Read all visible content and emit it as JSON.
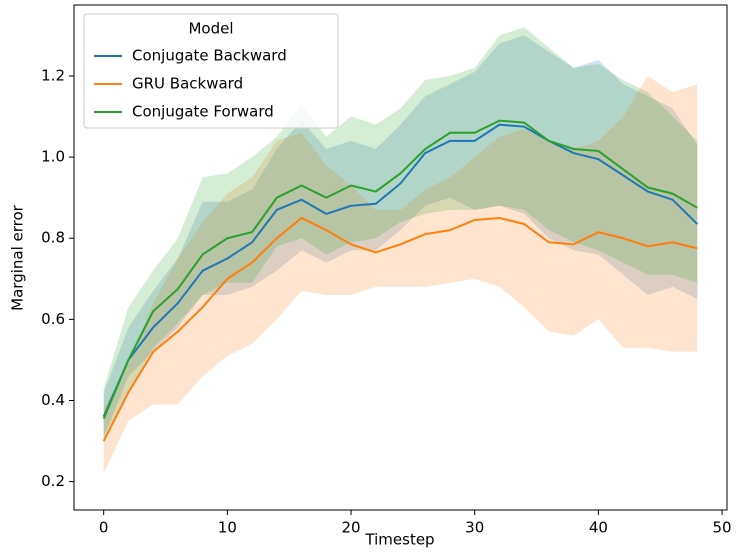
{
  "chart_data": {
    "type": "line",
    "x_label": "Timestep",
    "y_label": "Marginal error",
    "legend_title": "Model",
    "legend_position": "upper left",
    "x": [
      0,
      2,
      4,
      6,
      8,
      10,
      12,
      14,
      16,
      18,
      20,
      22,
      24,
      26,
      28,
      30,
      32,
      34,
      36,
      38,
      40,
      42,
      44,
      46,
      48
    ],
    "xlim": [
      -2.4,
      50.4
    ],
    "xticks": [
      0,
      10,
      20,
      30,
      40,
      50
    ],
    "ylim": [
      0.13,
      1.375
    ],
    "yticks": [
      0.2,
      0.4,
      0.6,
      0.8,
      {
        "value": 1,
        "label": "1.0"
      },
      1.2
    ],
    "band_opacity": 0.2,
    "series": [
      {
        "name": "Conjugate Backward",
        "color": "#1f77b4",
        "values": [
          0.36,
          0.5,
          0.58,
          0.64,
          0.72,
          0.75,
          0.79,
          0.87,
          0.895,
          0.86,
          0.88,
          0.885,
          0.935,
          1.01,
          1.04,
          1.04,
          1.08,
          1.075,
          1.04,
          1.01,
          0.995,
          0.955,
          0.915,
          0.895,
          0.835
        ],
        "lower": [
          0.31,
          0.46,
          0.52,
          0.58,
          0.66,
          0.66,
          0.68,
          0.72,
          0.77,
          0.74,
          0.77,
          0.77,
          0.82,
          0.88,
          0.9,
          0.87,
          0.88,
          0.86,
          0.8,
          0.77,
          0.76,
          0.71,
          0.66,
          0.68,
          0.65
        ],
        "upper": [
          0.42,
          0.58,
          0.67,
          0.75,
          0.89,
          0.89,
          0.92,
          1.02,
          1.09,
          1.02,
          1.04,
          1.02,
          1.08,
          1.15,
          1.18,
          1.21,
          1.28,
          1.3,
          1.26,
          1.22,
          1.24,
          1.18,
          1.15,
          1.12,
          1.03
        ]
      },
      {
        "name": "GRU Backward",
        "color": "#ff7f0e",
        "values": [
          0.3,
          0.42,
          0.52,
          0.57,
          0.63,
          0.7,
          0.74,
          0.8,
          0.85,
          0.82,
          0.785,
          0.765,
          0.785,
          0.81,
          0.82,
          0.845,
          0.85,
          0.835,
          0.79,
          0.785,
          0.815,
          0.8,
          0.78,
          0.79,
          0.775
        ],
        "lower": [
          0.22,
          0.35,
          0.39,
          0.39,
          0.46,
          0.51,
          0.54,
          0.6,
          0.67,
          0.66,
          0.66,
          0.68,
          0.68,
          0.68,
          0.69,
          0.7,
          0.68,
          0.63,
          0.57,
          0.56,
          0.6,
          0.53,
          0.53,
          0.52,
          0.52
        ],
        "upper": [
          0.38,
          0.49,
          0.64,
          0.75,
          0.84,
          0.91,
          0.95,
          1.04,
          1.06,
          0.98,
          0.93,
          0.87,
          0.87,
          0.92,
          0.95,
          1.0,
          1.05,
          1.07,
          1.04,
          1.02,
          1.04,
          1.1,
          1.2,
          1.16,
          1.18
        ]
      },
      {
        "name": "Conjugate Forward",
        "color": "#2ca02c",
        "values": [
          0.355,
          0.5,
          0.62,
          0.675,
          0.76,
          0.8,
          0.815,
          0.9,
          0.93,
          0.9,
          0.93,
          0.915,
          0.96,
          1.02,
          1.06,
          1.06,
          1.09,
          1.085,
          1.04,
          1.02,
          1.015,
          0.97,
          0.925,
          0.91,
          0.875
        ],
        "lower": [
          0.3,
          0.42,
          0.53,
          0.59,
          0.66,
          0.69,
          0.69,
          0.78,
          0.8,
          0.76,
          0.79,
          0.8,
          0.84,
          0.86,
          0.87,
          0.87,
          0.88,
          0.87,
          0.82,
          0.79,
          0.77,
          0.74,
          0.71,
          0.71,
          0.69
        ],
        "upper": [
          0.43,
          0.63,
          0.72,
          0.8,
          0.95,
          0.96,
          1.0,
          1.05,
          1.13,
          1.05,
          1.1,
          1.08,
          1.12,
          1.19,
          1.2,
          1.22,
          1.3,
          1.32,
          1.27,
          1.22,
          1.23,
          1.19,
          1.16,
          1.1,
          1.04
        ]
      }
    ]
  }
}
